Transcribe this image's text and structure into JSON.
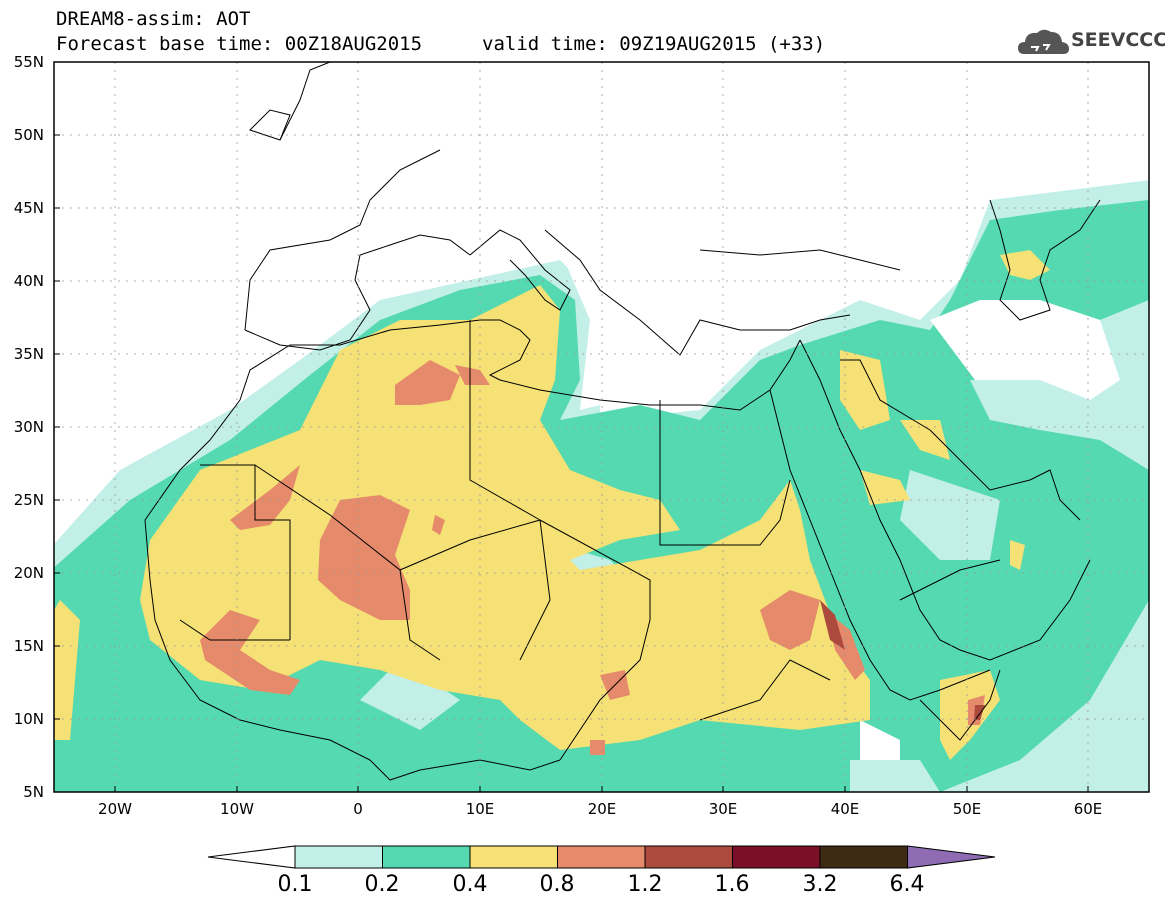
{
  "header": {
    "line1": "DREAM8-assim: AOT",
    "line2": "Forecast base time: 00Z18AUG2015",
    "valid": "valid time: 09Z19AUG2015 (+33)"
  },
  "logo": {
    "text": "SEEVCCC",
    "icon": "cloud-icon"
  },
  "map": {
    "lat_labels": [
      "55N",
      "50N",
      "45N",
      "40N",
      "35N",
      "30N",
      "25N",
      "20N",
      "15N",
      "10N",
      "5N"
    ],
    "lon_labels": [
      "20W",
      "10W",
      "0",
      "10E",
      "20E",
      "30E",
      "40E",
      "50E",
      "60E"
    ],
    "lat_range": [
      5,
      55
    ],
    "lon_range": [
      -25,
      65
    ],
    "grid": true
  },
  "colorbar": {
    "labels": [
      "0.1",
      "0.2",
      "0.4",
      "0.8",
      "1.2",
      "1.6",
      "3.2",
      "6.4"
    ],
    "colors": [
      "#ffffff",
      "#c2efe8",
      "#55d9b0",
      "#f5e175",
      "#e58a6a",
      "#ab4a3d",
      "#7a0f27",
      "#3d2b14",
      "#8e6bb3"
    ]
  }
}
